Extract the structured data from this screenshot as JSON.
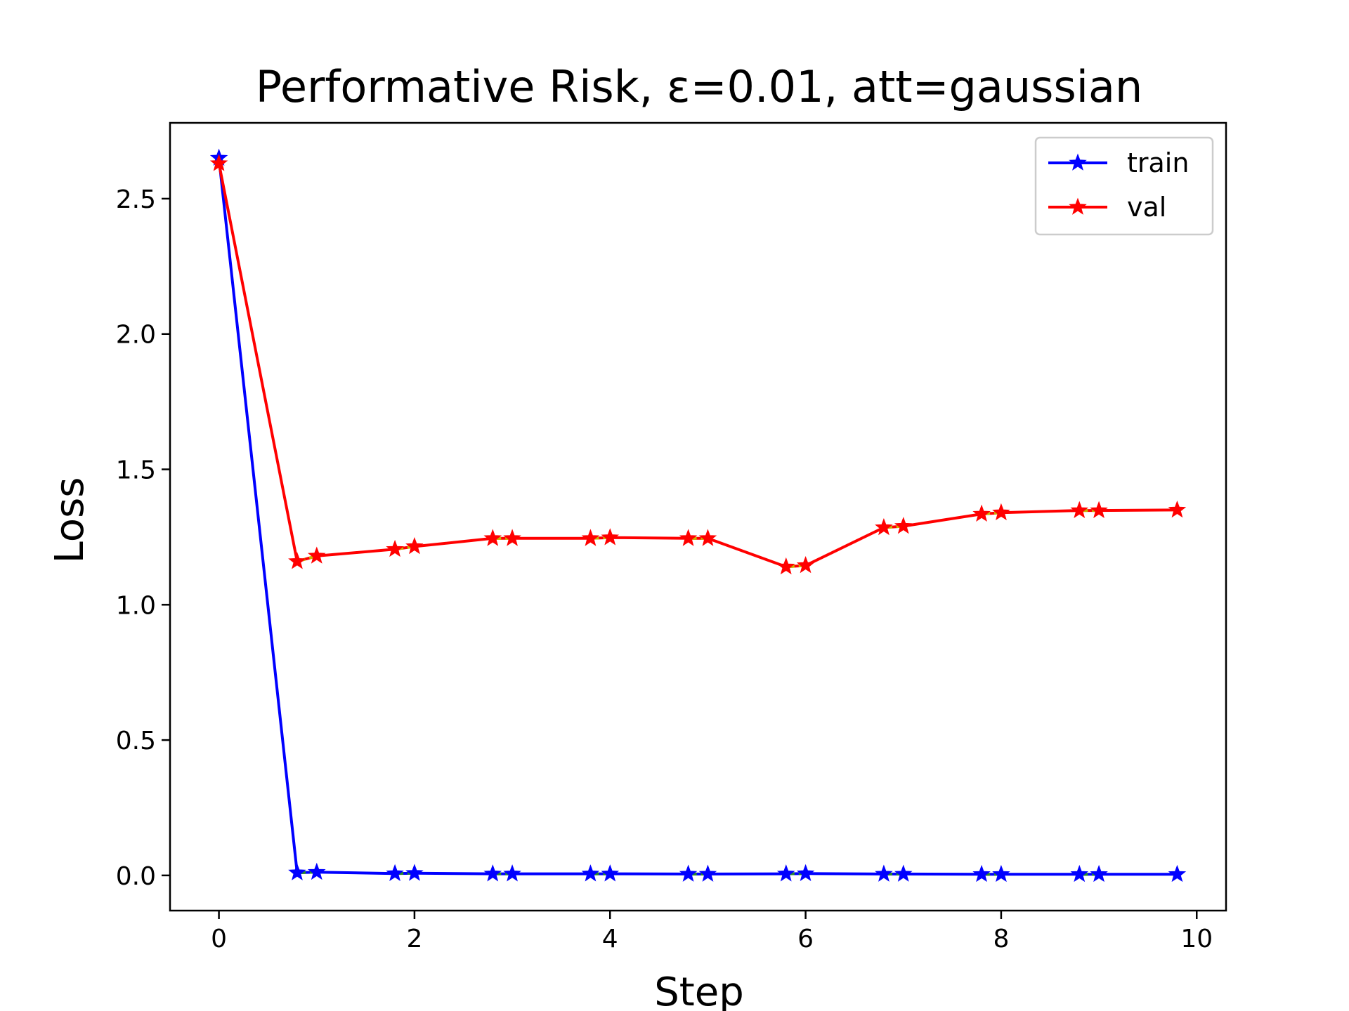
{
  "chart_data": {
    "type": "line",
    "title": "Performative Risk, ε=0.01, att=gaussian",
    "xlabel": "Step",
    "ylabel": "Loss",
    "xlim": [
      -0.5,
      10.3
    ],
    "ylim": [
      -0.13,
      2.78
    ],
    "xticks": [
      0,
      2,
      4,
      6,
      8,
      10
    ],
    "xtick_labels": [
      "0",
      "2",
      "4",
      "6",
      "8",
      "10"
    ],
    "yticks": [
      0.0,
      0.5,
      1.0,
      1.5,
      2.0,
      2.5
    ],
    "ytick_labels": [
      "0.0",
      "0.5",
      "1.0",
      "1.5",
      "2.0",
      "2.5"
    ],
    "grid": false,
    "legend_position": "top-right",
    "series": [
      {
        "name": "train",
        "color": "#0000ff",
        "marker": "star",
        "x": [
          0,
          0.8,
          1,
          1.8,
          2,
          2.8,
          3,
          3.8,
          4,
          4.8,
          5,
          5.8,
          6,
          6.8,
          7,
          7.8,
          8,
          8.8,
          9,
          9.8
        ],
        "y": [
          2.65,
          0.01,
          0.012,
          0.007,
          0.008,
          0.006,
          0.006,
          0.006,
          0.006,
          0.005,
          0.005,
          0.006,
          0.007,
          0.005,
          0.005,
          0.004,
          0.004,
          0.004,
          0.004,
          0.004
        ]
      },
      {
        "name": "val",
        "color": "#ff0000",
        "marker": "star",
        "x": [
          0,
          0.8,
          1,
          1.8,
          2,
          2.8,
          3,
          3.8,
          4,
          4.8,
          5,
          5.8,
          6,
          6.8,
          7,
          7.8,
          8,
          8.8,
          9,
          9.8
        ],
        "y": [
          2.63,
          1.16,
          1.18,
          1.205,
          1.215,
          1.245,
          1.245,
          1.245,
          1.248,
          1.245,
          1.245,
          1.14,
          1.145,
          1.285,
          1.29,
          1.335,
          1.34,
          1.348,
          1.348,
          1.35
        ]
      }
    ],
    "segment_overlays": [
      {
        "color": "#2a8a2a",
        "series": "train"
      },
      {
        "color": "#c8b400",
        "series": "val"
      }
    ]
  }
}
